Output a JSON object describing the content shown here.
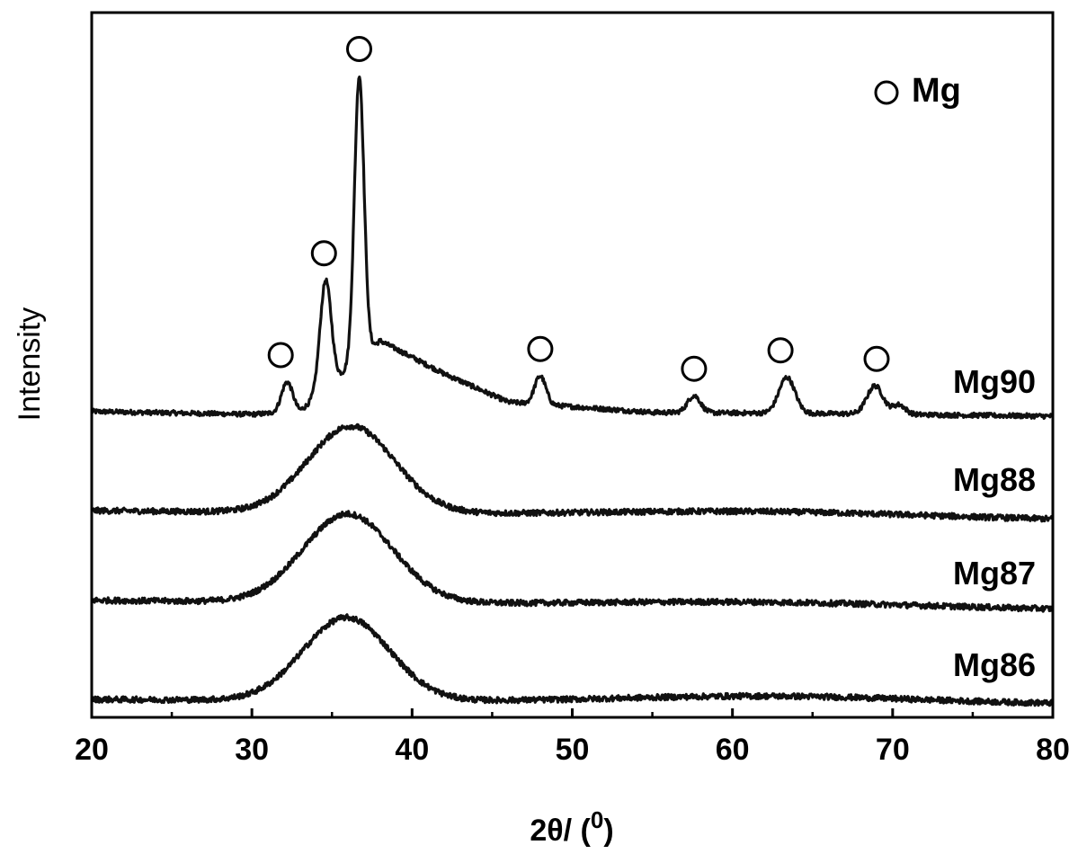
{
  "chart_data": {
    "type": "line",
    "xlabel": "2θ/ (",
    "xlabel_sup": "0",
    "xlabel_close": ")",
    "ylabel": "Intensity",
    "xlim": [
      20,
      80
    ],
    "xticks": [
      "20",
      "30",
      "40",
      "50",
      "60",
      "70",
      "80"
    ],
    "x_minor_ticks": [
      25,
      35,
      45,
      55,
      65,
      75
    ],
    "grid": false,
    "yticks_shown": false,
    "legend": {
      "label": "Mg",
      "marker": "open-circle",
      "placement": "top-right"
    },
    "series": [
      {
        "name": "Mg90",
        "offset": 3.0,
        "baseline": [
          [
            20,
            0.05
          ],
          [
            30,
            0.02
          ],
          [
            33,
            0.05
          ],
          [
            38,
            0.8
          ],
          [
            42,
            0.45
          ],
          [
            46,
            0.15
          ],
          [
            55,
            0.04
          ],
          [
            65,
            0.03
          ],
          [
            80,
            0.0
          ]
        ],
        "peaks": [
          [
            32.2,
            0.32,
            0.35
          ],
          [
            34.6,
            1.15,
            0.35
          ],
          [
            36.7,
            3.0,
            0.3
          ],
          [
            48.0,
            0.3,
            0.35
          ],
          [
            57.6,
            0.18,
            0.4
          ],
          [
            63.4,
            0.38,
            0.5
          ],
          [
            68.9,
            0.3,
            0.5
          ],
          [
            70.4,
            0.1,
            0.4
          ]
        ],
        "noise": 0.025
      },
      {
        "name": "Mg88",
        "offset": 2.0,
        "hump": [
          36.2,
          2.7,
          0.92
        ],
        "tail": [
          62.0,
          10.0,
          0.06
        ],
        "slope": -0.1,
        "noise": 0.03
      },
      {
        "name": "Mg87",
        "offset": 1.05,
        "hump": [
          36.0,
          2.8,
          0.94
        ],
        "tail": [
          62.0,
          10.0,
          0.05
        ],
        "slope": -0.1,
        "noise": 0.03
      },
      {
        "name": "Mg86",
        "offset": 0.0,
        "hump": [
          35.9,
          2.7,
          0.88
        ],
        "tail": [
          62.5,
          9.0,
          0.07
        ],
        "slope": -0.05,
        "noise": 0.03
      }
    ],
    "markers_mg": [
      31.8,
      34.5,
      36.7,
      48.0,
      57.6,
      63.0,
      69.0
    ]
  }
}
